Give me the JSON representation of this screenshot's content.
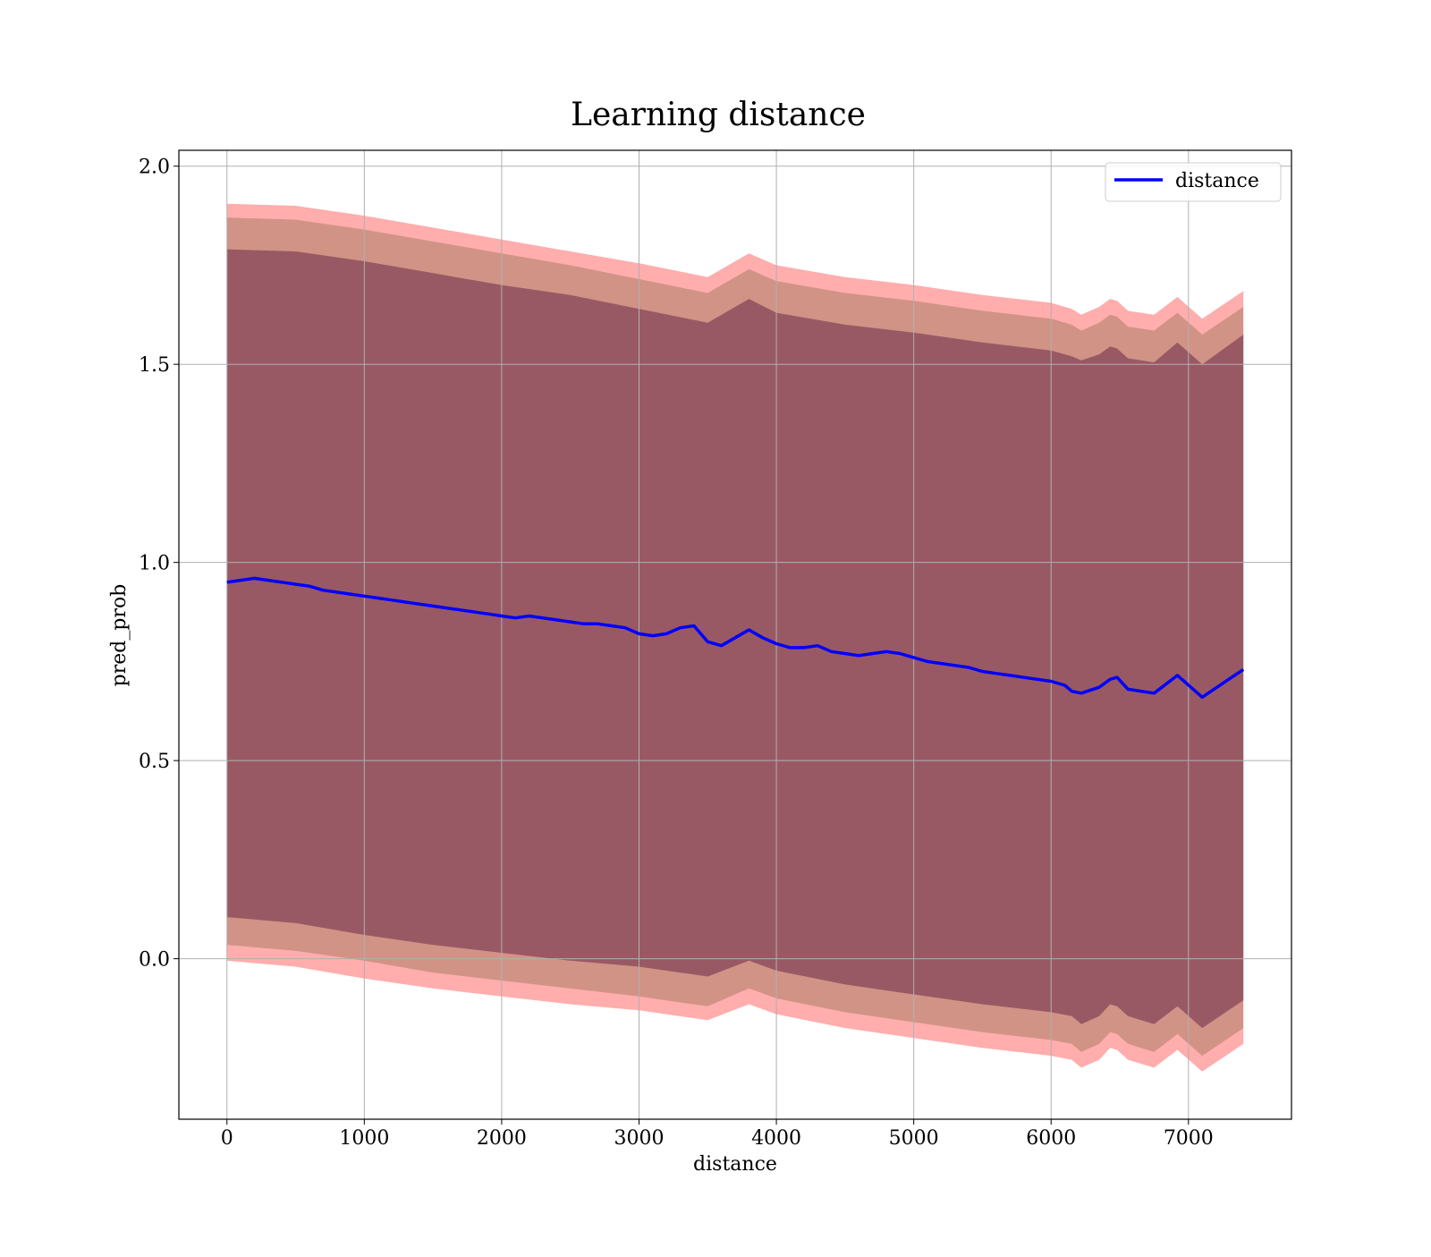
{
  "chart_data": {
    "type": "line",
    "title": "Learning distance",
    "xlabel": "distance",
    "ylabel": "pred_prob",
    "xlim": [
      -350,
      7750
    ],
    "ylim": [
      -0.405,
      2.04
    ],
    "x_ticks": [
      0,
      1000,
      2000,
      3000,
      4000,
      5000,
      6000,
      7000
    ],
    "y_ticks": [
      0.0,
      0.5,
      1.0,
      1.5,
      2.0
    ],
    "x_tick_labels": [
      "0",
      "1000",
      "2000",
      "3000",
      "4000",
      "5000",
      "6000",
      "7000"
    ],
    "y_tick_labels": [
      "0.0",
      "0.5",
      "1.0",
      "1.5",
      "2.0"
    ],
    "grid": true,
    "legend_position": "top-right",
    "series": [
      {
        "name": "distance",
        "color": "#0000ff",
        "x": [
          0,
          100,
          200,
          300,
          400,
          500,
          600,
          700,
          800,
          900,
          1000,
          1100,
          1200,
          1300,
          1400,
          1500,
          1600,
          1700,
          1800,
          1900,
          2000,
          2100,
          2200,
          2300,
          2400,
          2500,
          2600,
          2700,
          2800,
          2900,
          3000,
          3100,
          3200,
          3300,
          3400,
          3500,
          3600,
          3700,
          3800,
          3900,
          4000,
          4100,
          4200,
          4300,
          4400,
          4500,
          4600,
          4700,
          4800,
          4900,
          5000,
          5100,
          5200,
          5300,
          5400,
          5500,
          5600,
          5700,
          5800,
          5900,
          6000,
          6100,
          6150,
          6220,
          6350,
          6430,
          6480,
          6560,
          6750,
          6920,
          7100,
          7400
        ],
        "y": [
          0.95,
          0.955,
          0.96,
          0.955,
          0.95,
          0.945,
          0.94,
          0.93,
          0.925,
          0.92,
          0.915,
          0.91,
          0.905,
          0.9,
          0.895,
          0.89,
          0.885,
          0.88,
          0.875,
          0.87,
          0.865,
          0.86,
          0.865,
          0.86,
          0.855,
          0.85,
          0.845,
          0.845,
          0.84,
          0.835,
          0.82,
          0.815,
          0.82,
          0.835,
          0.84,
          0.8,
          0.79,
          0.81,
          0.83,
          0.81,
          0.795,
          0.785,
          0.785,
          0.79,
          0.775,
          0.77,
          0.765,
          0.77,
          0.775,
          0.77,
          0.76,
          0.75,
          0.745,
          0.74,
          0.735,
          0.725,
          0.72,
          0.715,
          0.71,
          0.705,
          0.7,
          0.69,
          0.675,
          0.67,
          0.685,
          0.705,
          0.71,
          0.68,
          0.67,
          0.715,
          0.66,
          0.73
        ]
      }
    ],
    "bands": [
      {
        "role": "outer",
        "color": "#ff0000",
        "opacity": 0.32,
        "x": [
          0,
          500,
          1000,
          1500,
          2000,
          2500,
          3000,
          3500,
          3800,
          4000,
          4500,
          5000,
          5500,
          6000,
          6150,
          6220,
          6350,
          6430,
          6480,
          6560,
          6750,
          6920,
          7100,
          7400
        ],
        "upper": [
          1.905,
          1.9,
          1.875,
          1.845,
          1.815,
          1.785,
          1.755,
          1.72,
          1.78,
          1.75,
          1.72,
          1.7,
          1.675,
          1.655,
          1.64,
          1.625,
          1.645,
          1.665,
          1.66,
          1.635,
          1.625,
          1.67,
          1.615,
          1.685
        ],
        "lower": [
          -0.005,
          -0.02,
          -0.05,
          -0.075,
          -0.095,
          -0.115,
          -0.13,
          -0.155,
          -0.115,
          -0.14,
          -0.175,
          -0.2,
          -0.225,
          -0.245,
          -0.255,
          -0.275,
          -0.255,
          -0.225,
          -0.23,
          -0.255,
          -0.275,
          -0.23,
          -0.285,
          -0.215
        ]
      },
      {
        "role": "middle",
        "color": "#8b6b4a",
        "opacity": 0.4,
        "x": [
          0,
          500,
          1000,
          1500,
          2000,
          2500,
          3000,
          3500,
          3800,
          4000,
          4500,
          5000,
          5500,
          6000,
          6150,
          6220,
          6350,
          6430,
          6480,
          6560,
          6750,
          6920,
          7100,
          7400
        ],
        "upper": [
          1.87,
          1.865,
          1.84,
          1.81,
          1.78,
          1.75,
          1.715,
          1.68,
          1.74,
          1.71,
          1.68,
          1.66,
          1.635,
          1.615,
          1.6,
          1.585,
          1.605,
          1.625,
          1.62,
          1.595,
          1.585,
          1.63,
          1.575,
          1.645
        ],
        "lower": [
          0.035,
          0.02,
          -0.005,
          -0.035,
          -0.055,
          -0.075,
          -0.095,
          -0.12,
          -0.075,
          -0.1,
          -0.135,
          -0.16,
          -0.185,
          -0.205,
          -0.215,
          -0.235,
          -0.215,
          -0.185,
          -0.19,
          -0.215,
          -0.235,
          -0.19,
          -0.245,
          -0.175
        ]
      },
      {
        "role": "inner",
        "color": "#6b2a48",
        "opacity": 0.55,
        "x": [
          0,
          500,
          1000,
          1500,
          2000,
          2500,
          3000,
          3500,
          3800,
          4000,
          4500,
          5000,
          5500,
          6000,
          6150,
          6220,
          6350,
          6430,
          6480,
          6560,
          6750,
          6920,
          7100,
          7400
        ],
        "upper": [
          1.79,
          1.785,
          1.76,
          1.73,
          1.7,
          1.675,
          1.64,
          1.605,
          1.665,
          1.63,
          1.6,
          1.58,
          1.555,
          1.535,
          1.52,
          1.51,
          1.525,
          1.545,
          1.54,
          1.515,
          1.505,
          1.555,
          1.5,
          1.575
        ]
      }
    ]
  },
  "legend": {
    "entries": [
      "distance"
    ]
  }
}
